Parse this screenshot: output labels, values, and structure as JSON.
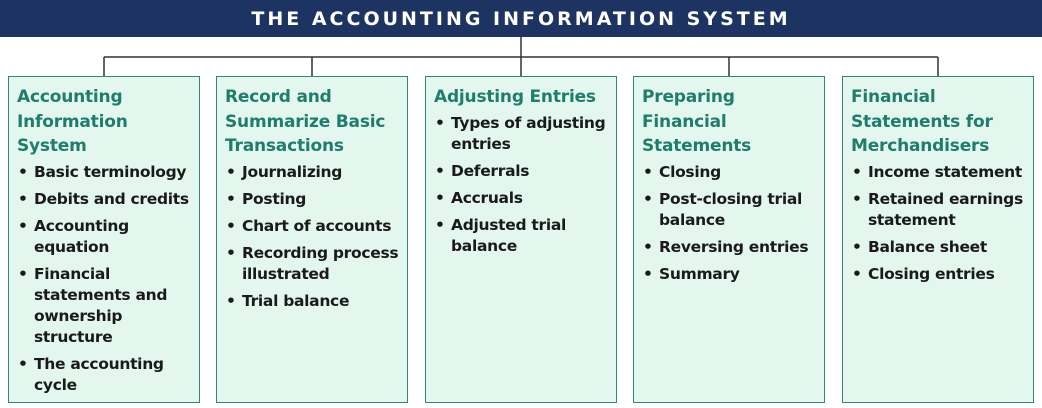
{
  "banner": {
    "title": "THE ACCOUNTING INFORMATION SYSTEM"
  },
  "colors": {
    "banner_bg": "#1d3361",
    "banner_text": "#ffffff",
    "box_bg": "#e3f7ef",
    "box_border": "#2f8a73",
    "heading": "#1e7d6c",
    "connector": "#333333"
  },
  "bullet_glyph": "•",
  "columns": [
    {
      "title": "Accounting Information System",
      "items": [
        "Basic terminology",
        "Debits and credits",
        "Accounting equation",
        "Financial statements and ownership structure",
        "The accounting cycle"
      ]
    },
    {
      "title": "Record and Summarize Basic Transactions",
      "items": [
        "Journalizing",
        "Posting",
        "Chart of accounts",
        "Recording process illustrated",
        "Trial balance"
      ]
    },
    {
      "title": "Adjusting Entries",
      "items": [
        "Types of adjusting entries",
        "Deferrals",
        "Accruals",
        "Adjusted trial balance"
      ]
    },
    {
      "title": "Preparing Financial Statements",
      "items": [
        "Closing",
        "Post-closing trial balance",
        "Reversing entries",
        "Summary"
      ]
    },
    {
      "title": "Financial Statements for Merchandisers",
      "items": [
        "Income statement",
        "Retained earnings statement",
        "Balance sheet",
        "Closing entries"
      ]
    }
  ]
}
